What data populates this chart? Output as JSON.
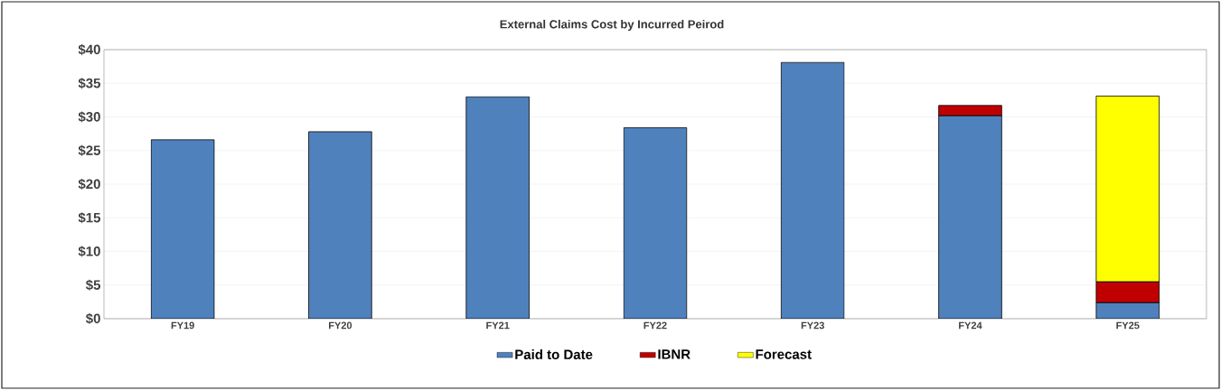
{
  "chart_data": {
    "type": "bar",
    "title": "External Claims Cost by Incurred Peirod",
    "categories": [
      "FY19",
      "FY20",
      "FY21",
      "FY22",
      "FY23",
      "FY24",
      "FY25"
    ],
    "stacked": true,
    "series": [
      {
        "name": "Paid to Date",
        "color": "#4f81bd",
        "values": [
          26.6,
          27.8,
          33.0,
          28.4,
          38.1,
          30.2,
          2.4
        ]
      },
      {
        "name": "IBNR",
        "color": "#c00000",
        "values": [
          null,
          null,
          null,
          null,
          null,
          1.5,
          3.1
        ]
      },
      {
        "name": "Forecast",
        "color": "#ffff00",
        "values": [
          null,
          null,
          null,
          null,
          null,
          null,
          27.6
        ]
      }
    ],
    "ylim": [
      0,
      40
    ],
    "yticks": [
      {
        "value": 0,
        "label": "$0"
      },
      {
        "value": 5,
        "label": "$5"
      },
      {
        "value": 10,
        "label": "$10"
      },
      {
        "value": 15,
        "label": "$15"
      },
      {
        "value": 20,
        "label": "$20"
      },
      {
        "value": 25,
        "label": "$25"
      },
      {
        "value": 30,
        "label": "$30"
      },
      {
        "value": 35,
        "label": "$35"
      },
      {
        "value": 40,
        "label": "$40"
      }
    ],
    "grid": "y",
    "legend": "bottom"
  }
}
